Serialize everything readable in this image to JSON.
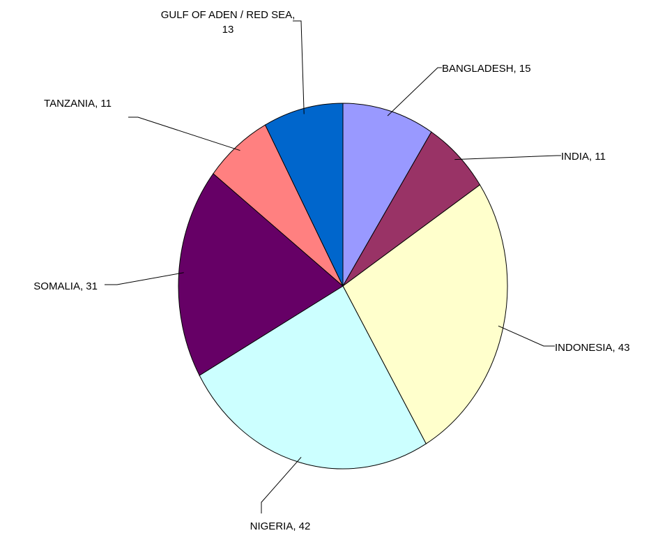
{
  "chart_data": {
    "type": "pie",
    "start_angle_deg": 0,
    "direction": "clockwise",
    "legend": "none",
    "slices": [
      {
        "label": "BANGLADESH, 15",
        "category": "BANGLADESH",
        "value": 15,
        "color": "#9999ff"
      },
      {
        "label": "INDIA, 11",
        "category": "INDIA",
        "value": 11,
        "color": "#993366"
      },
      {
        "label": "INDONESIA, 43",
        "category": "INDONESIA",
        "value": 43,
        "color": "#ffffcc"
      },
      {
        "label": "NIGERIA, 42",
        "category": "NIGERIA",
        "value": 42,
        "color": "#ccffff"
      },
      {
        "label": "SOMALIA, 31",
        "category": "SOMALIA",
        "value": 31,
        "color": "#660066"
      },
      {
        "label": "TANZANIA, 11",
        "category": "TANZANIA",
        "value": 11,
        "color": "#ff8080"
      },
      {
        "label": "GULF OF ADEN / RED SEA, 13",
        "category": "GULF OF ADEN / RED SEA",
        "value": 13,
        "color": "#0066cc"
      }
    ]
  }
}
